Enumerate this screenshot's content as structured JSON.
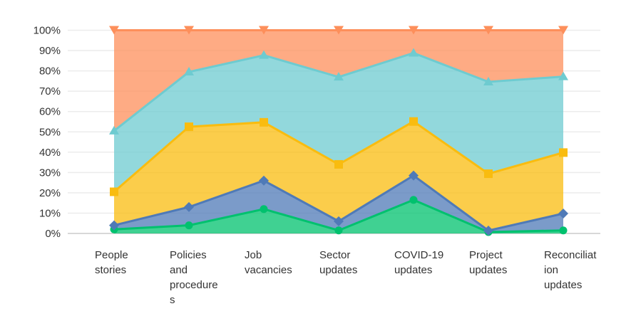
{
  "chart_data": {
    "type": "area",
    "stacking": "percent",
    "title": "",
    "xlabel": "",
    "ylabel": "",
    "ylim": [
      0,
      100
    ],
    "y_ticks": [
      "0%",
      "10%",
      "20%",
      "30%",
      "40%",
      "50%",
      "60%",
      "70%",
      "80%",
      "90%",
      "100%"
    ],
    "grid": true,
    "legend": "none",
    "categories": [
      "People stories",
      "Policies and procedures",
      "Job vacancies",
      "Sector updates",
      "COVID-19 updates",
      "Project updates",
      "Reconciliation updates"
    ],
    "series": [
      {
        "color": "#00c16e",
        "marker": "circle",
        "values": [
          2,
          4,
          12,
          1.5,
          16.5,
          0.7,
          1.5
        ]
      },
      {
        "color": "#4f7ab7",
        "marker": "diamond",
        "values": [
          2,
          9,
          14,
          4.5,
          12,
          0.7,
          8.3
        ]
      },
      {
        "color": "#f9bc0f",
        "marker": "square",
        "values": [
          16.5,
          39.5,
          28.7,
          28,
          26.6,
          28,
          30
        ]
      },
      {
        "color": "#6ecbd0",
        "marker": "triangle-up",
        "values": [
          30,
          27,
          33,
          43,
          33.7,
          45.2,
          37.4
        ]
      },
      {
        "color": "#fd8f5b",
        "marker": "triangle-down",
        "values": [
          49.5,
          20.5,
          12.3,
          23,
          11.2,
          25.4,
          22.8
        ]
      }
    ]
  }
}
